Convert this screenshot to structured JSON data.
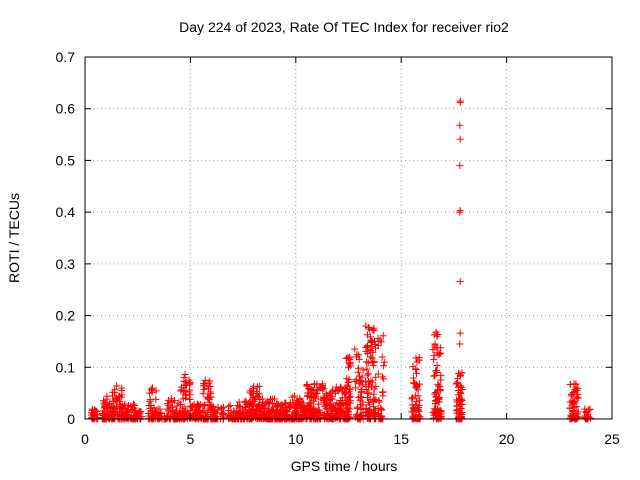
{
  "chart_data": {
    "type": "scatter",
    "title": "Day 224 of 2023, Rate Of TEC Index for receiver rio2",
    "xlabel": "GPS time / hours",
    "ylabel": "ROTI / TECUs",
    "xlim": [
      0,
      25
    ],
    "ylim": [
      0,
      0.7
    ],
    "xticks": [
      0,
      5,
      10,
      15,
      20,
      25
    ],
    "yticks": [
      0,
      0.1,
      0.2,
      0.3,
      0.4,
      0.5,
      0.6,
      0.7
    ],
    "xtick_labels": [
      "0",
      "5",
      "10",
      "15",
      "20",
      "25"
    ],
    "ytick_labels": [
      "0",
      "0.1",
      "0.2",
      "0.3",
      "0.4",
      "0.5",
      "0.6",
      "0.7"
    ],
    "grid": true,
    "marker": "+",
    "color": "#ff0000",
    "clusters": [
      {
        "x": [
          0.3,
          0.6
        ],
        "ymax": 0.02,
        "n": 30
      },
      {
        "x": [
          0.8,
          1.3
        ],
        "ymax": 0.045,
        "n": 60
      },
      {
        "x": [
          1.3,
          1.8
        ],
        "ymax": 0.065,
        "n": 60
      },
      {
        "x": [
          1.8,
          2.4
        ],
        "ymax": 0.03,
        "n": 50
      },
      {
        "x": [
          2.4,
          2.7
        ],
        "ymax": 0.015,
        "n": 20
      },
      {
        "x": [
          3.0,
          3.4
        ],
        "ymax": 0.06,
        "n": 40
      },
      {
        "x": [
          3.4,
          3.9
        ],
        "ymax": 0.02,
        "n": 30
      },
      {
        "x": [
          3.9,
          4.5
        ],
        "ymax": 0.04,
        "n": 50
      },
      {
        "x": [
          4.5,
          5.0
        ],
        "ymax": 0.085,
        "n": 60
      },
      {
        "x": [
          5.0,
          5.6
        ],
        "ymax": 0.03,
        "n": 50
      },
      {
        "x": [
          5.6,
          6.0
        ],
        "ymax": 0.075,
        "n": 50
      },
      {
        "x": [
          6.0,
          6.6
        ],
        "ymax": 0.025,
        "n": 40
      },
      {
        "x": [
          6.8,
          7.3
        ],
        "ymax": 0.03,
        "n": 40
      },
      {
        "x": [
          7.3,
          7.8
        ],
        "ymax": 0.04,
        "n": 50
      },
      {
        "x": [
          7.8,
          8.3
        ],
        "ymax": 0.065,
        "n": 80
      },
      {
        "x": [
          8.3,
          9.0
        ],
        "ymax": 0.04,
        "n": 80
      },
      {
        "x": [
          9.0,
          9.8
        ],
        "ymax": 0.035,
        "n": 90
      },
      {
        "x": [
          9.8,
          10.5
        ],
        "ymax": 0.045,
        "n": 100
      },
      {
        "x": [
          10.5,
          11.3
        ],
        "ymax": 0.07,
        "n": 110
      },
      {
        "x": [
          11.3,
          12.3
        ],
        "ymax": 0.065,
        "n": 120
      },
      {
        "x": [
          12.3,
          12.6
        ],
        "ymax": 0.12,
        "n": 60
      },
      {
        "x": [
          12.8,
          13.2
        ],
        "ymax": 0.14,
        "n": 50
      },
      {
        "x": [
          13.3,
          13.8
        ],
        "ymax": 0.18,
        "n": 90
      },
      {
        "x": [
          13.9,
          14.2
        ],
        "ymax": 0.16,
        "n": 30
      },
      {
        "x": [
          15.5,
          15.9
        ],
        "ymax": 0.12,
        "n": 60
      },
      {
        "x": [
          16.5,
          16.9
        ],
        "ymax": 0.17,
        "n": 80
      },
      {
        "x": [
          17.6,
          17.9
        ],
        "ymax": 0.09,
        "n": 60
      },
      {
        "x": [
          23.0,
          23.4
        ],
        "ymax": 0.07,
        "n": 60
      },
      {
        "x": [
          23.7,
          24.0
        ],
        "ymax": 0.02,
        "n": 20
      }
    ],
    "points": [
      [
        17.8,
        0.615
      ],
      [
        17.8,
        0.612
      ],
      [
        17.78,
        0.568
      ],
      [
        17.8,
        0.541
      ],
      [
        17.78,
        0.49
      ],
      [
        17.8,
        0.403
      ],
      [
        17.78,
        0.4
      ],
      [
        17.8,
        0.266
      ],
      [
        17.8,
        0.166
      ],
      [
        17.78,
        0.145
      ],
      [
        14.15,
        0.161
      ],
      [
        14.1,
        0.12
      ],
      [
        14.2,
        0.11
      ],
      [
        13.45,
        0.177
      ],
      [
        13.4,
        0.163
      ],
      [
        12.8,
        0.135
      ],
      [
        12.9,
        0.125
      ],
      [
        16.65,
        0.168
      ],
      [
        16.7,
        0.16
      ],
      [
        16.6,
        0.145
      ],
      [
        15.7,
        0.118
      ],
      [
        15.75,
        0.11
      ],
      [
        15.6,
        0.07
      ],
      [
        4.75,
        0.086
      ],
      [
        4.7,
        0.08
      ],
      [
        5.7,
        0.075
      ],
      [
        11.0,
        0.068
      ],
      [
        3.2,
        0.06
      ],
      [
        1.5,
        0.064
      ],
      [
        8.0,
        0.063
      ],
      [
        23.2,
        0.068
      ],
      [
        23.3,
        0.06
      ],
      [
        12.4,
        0.117
      ],
      [
        12.5,
        0.1
      ],
      [
        13.6,
        0.14
      ],
      [
        13.55,
        0.12
      ]
    ]
  }
}
